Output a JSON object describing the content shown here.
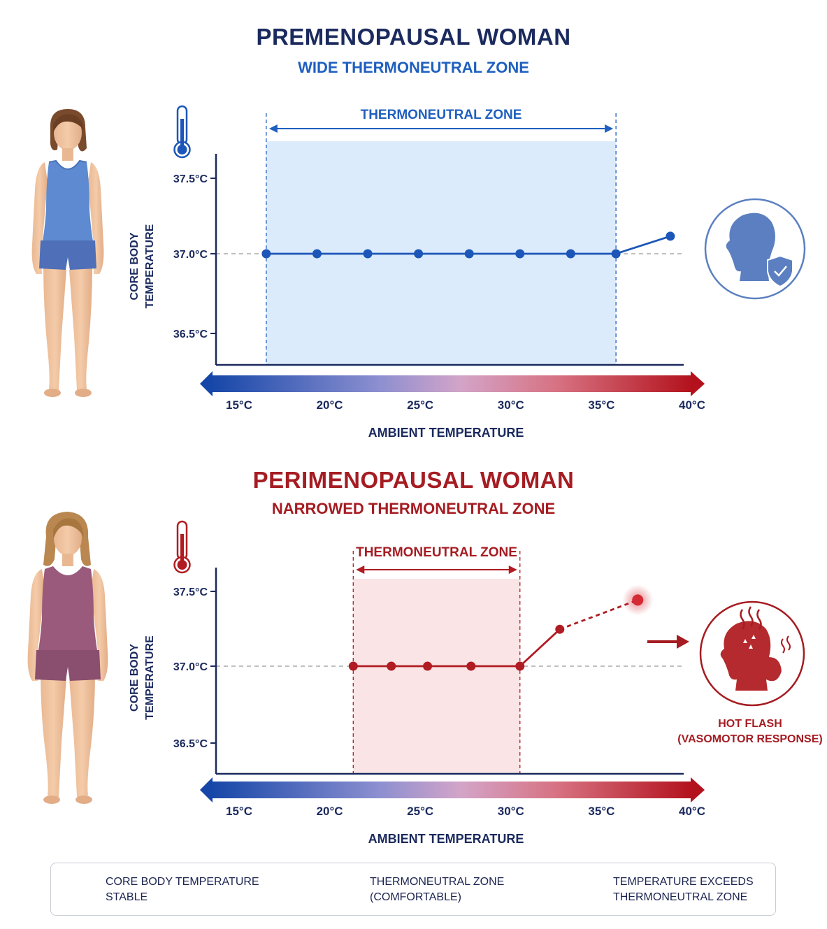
{
  "header_top": {
    "title": "PREMENOPAUSAL WOMAN",
    "subtitle": "WIDE THERMONEUTRAL ZONE"
  },
  "header_bottom": {
    "title": "PERIMENOPAUSAL WOMAN",
    "subtitle": "NARROWED THERMONEUTRAL ZONE"
  },
  "colors": {
    "navy": "#1b2a5e",
    "blue": "#1f5fbf",
    "red": "#b01c22",
    "zone_blue": "#dcebfb",
    "zone_red": "#fbe4e6"
  },
  "hot_flash": {
    "line1": "HOT FLASH",
    "line2": "(VASOMOTOR RESPONSE)"
  },
  "legend": {
    "stable_line1": "CORE BODY TEMPERATURE",
    "stable_line2": "STABLE",
    "zone_line1": "THERMONEUTRAL ZONE",
    "zone_line2": "(COMFORTABLE)",
    "exceeds_line1": "TEMPERATURE EXCEEDS",
    "exceeds_line2": "THERMONEUTRAL ZONE"
  },
  "icons": [
    "woman-figure-icon",
    "thermometer-icon",
    "head-shield-icon",
    "hot-flash-head-icon",
    "arrow-right-icon"
  ],
  "chart_data": [
    {
      "type": "line",
      "zone_label": "THERMONEUTRAL ZONE",
      "zone": [
        16.5,
        35.8
      ],
      "x": [
        16.5,
        19.3,
        22.1,
        24.9,
        27.7,
        30.5,
        33.3,
        35.8,
        38.8
      ],
      "y": [
        37.0,
        37.0,
        37.0,
        37.0,
        37.0,
        37.0,
        37.0,
        37.0,
        37.11
      ],
      "xlabel": "AMBIENT TEMPERATURE",
      "ylabel": "CORE BODY TEMPERATURE",
      "xticks": [
        "15°C",
        "20°C",
        "25°C",
        "30°C",
        "35°C",
        "40°C"
      ],
      "yticks": [
        "37.5°C",
        "37.0°C",
        "36.5°C"
      ],
      "xlim": [
        13.5,
        40
      ],
      "ylim": [
        36.3,
        37.6
      ]
    },
    {
      "type": "line",
      "zone_label": "THERMONEUTRAL ZONE",
      "zone": [
        21.3,
        30.5
      ],
      "x": [
        21.3,
        23.4,
        25.4,
        27.8,
        30.5,
        32.7
      ],
      "y": [
        37.0,
        37.0,
        37.0,
        37.0,
        37.0,
        37.24
      ],
      "exceed_point": {
        "x": 37.0,
        "y": 37.43
      },
      "xlabel": "AMBIENT TEMPERATURE",
      "ylabel": "CORE BODY TEMPERATURE",
      "xticks": [
        "15°C",
        "20°C",
        "25°C",
        "30°C",
        "35°C",
        "40°C"
      ],
      "yticks": [
        "37.5°C",
        "37.0°C",
        "36.5°C"
      ],
      "xlim": [
        13.5,
        40
      ],
      "ylim": [
        36.3,
        37.6
      ]
    }
  ]
}
